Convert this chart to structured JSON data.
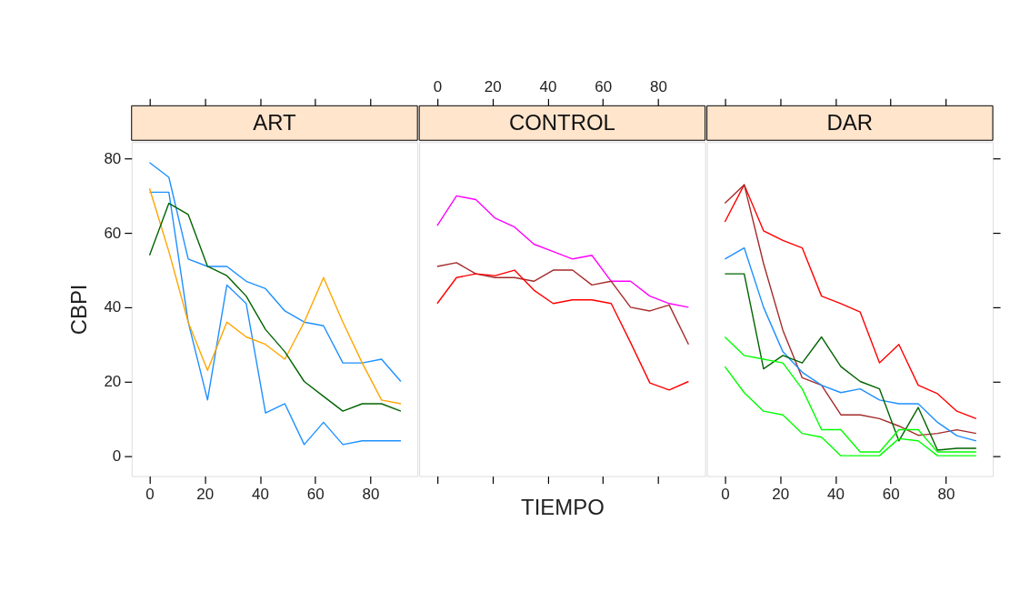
{
  "chart_data": [
    {
      "type": "line",
      "title": "ART",
      "ylabel": "CBPI",
      "x": [
        0,
        7,
        14,
        21,
        28,
        35,
        42,
        49,
        56,
        63,
        70,
        77,
        84,
        91
      ],
      "xlim": [
        -6.5,
        97
      ],
      "xticks": [
        0,
        20,
        40,
        60,
        80
      ],
      "ylim": [
        -5.5,
        84.5
      ],
      "yticks": [
        0,
        20,
        40,
        60,
        80
      ],
      "series": [
        {
          "color": "#1e90ff",
          "values": [
            79,
            75,
            53,
            51,
            51,
            47,
            45,
            39,
            36,
            35,
            25,
            25,
            26,
            20
          ]
        },
        {
          "color": "#1e90ff",
          "values": [
            71,
            71,
            36,
            15,
            46,
            41,
            11.5,
            14,
            3,
            9,
            3,
            4,
            4,
            4
          ]
        },
        {
          "color": "#ffa500",
          "values": [
            72,
            55,
            36,
            23,
            36,
            32,
            30,
            26,
            36,
            48,
            36,
            25,
            15,
            14
          ]
        },
        {
          "color": "#006400",
          "values": [
            54,
            68,
            65,
            51,
            48.5,
            43,
            34,
            28,
            20,
            16,
            12,
            14,
            14,
            12
          ]
        }
      ]
    },
    {
      "type": "line",
      "title": "CONTROL",
      "xlabel": "TIEMPO",
      "tick_labels": "x",
      "x": [
        0,
        7,
        14,
        21,
        28,
        35,
        42,
        49,
        56,
        63,
        70,
        77,
        84,
        91
      ],
      "xlim": [
        -6.5,
        97
      ],
      "xticks": [
        0,
        20,
        40,
        60,
        80
      ],
      "ylim": [
        -5.5,
        84.5
      ],
      "series": [
        {
          "color": "#ff00ff",
          "values": [
            62,
            70,
            69,
            64,
            61.6,
            57,
            55,
            53,
            54,
            47,
            47,
            43,
            41,
            40
          ]
        },
        {
          "color": "#a52a2a",
          "values": [
            51,
            52,
            49,
            48,
            48,
            47,
            50,
            50,
            46,
            47,
            40,
            39,
            40.6,
            30
          ]
        },
        {
          "color": "#ff0000",
          "values": [
            41,
            48,
            49,
            48.5,
            50,
            44.6,
            41,
            42,
            42,
            41,
            30.5,
            19.6,
            17.7,
            20
          ]
        }
      ]
    },
    {
      "type": "line",
      "title": "DAR",
      "tick_labels": "x",
      "x": [
        0,
        7,
        14,
        21,
        28,
        35,
        42,
        49,
        56,
        63,
        70,
        77,
        84,
        91
      ],
      "xlim": [
        -6.5,
        97
      ],
      "xticks": [
        0,
        20,
        40,
        60,
        80
      ],
      "ylim": [
        -5.5,
        84.5
      ],
      "yticks": [
        0,
        20,
        40,
        60,
        80
      ],
      "series": [
        {
          "color": "#ff0000",
          "values": [
            63,
            73,
            60.6,
            58,
            56,
            43,
            41,
            38.7,
            25,
            30,
            19,
            16.7,
            12,
            10
          ]
        },
        {
          "color": "#a52a2a",
          "values": [
            68,
            73,
            51.8,
            33.8,
            21,
            19,
            11,
            11,
            10,
            8,
            5.5,
            6,
            7,
            6
          ]
        },
        {
          "color": "#1e90ff",
          "values": [
            53,
            56,
            40,
            28,
            22.5,
            19,
            17,
            18,
            15,
            14,
            14,
            9,
            5.4,
            4
          ]
        },
        {
          "color": "#006400",
          "values": [
            49,
            49,
            23.4,
            27,
            25,
            32,
            24,
            20,
            18,
            4,
            13,
            1.5,
            2,
            2
          ]
        },
        {
          "color": "#00ff00",
          "values": [
            32,
            27,
            26,
            25,
            18,
            7,
            7,
            1,
            1,
            7,
            7,
            1,
            1,
            1
          ]
        },
        {
          "color": "#00ff00",
          "values": [
            24,
            17,
            12,
            11,
            6,
            5,
            0,
            0,
            0,
            4.6,
            4,
            0,
            0,
            0
          ]
        }
      ]
    }
  ]
}
